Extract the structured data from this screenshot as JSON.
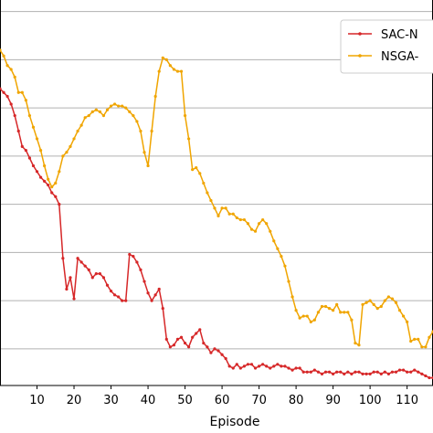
{
  "chart_data": {
    "type": "line",
    "title": "",
    "xlabel": "Episode",
    "ylabel": "",
    "xlim": [
      0,
      117
    ],
    "ylim": [
      0,
      1
    ],
    "x_ticks": [
      10,
      20,
      30,
      40,
      50,
      60,
      70,
      80,
      90,
      100,
      110
    ],
    "y_gridlines": [
      0.095,
      0.22,
      0.345,
      0.47,
      0.595,
      0.72,
      0.845,
      0.97
    ],
    "grid": "horizontal",
    "legend_position": "top-right",
    "series": [
      {
        "name": "SAC-N",
        "color": "#d62728",
        "values": [
          [
            0,
            0.77
          ],
          [
            1,
            0.76
          ],
          [
            2,
            0.75
          ],
          [
            3,
            0.73
          ],
          [
            4,
            0.7
          ],
          [
            5,
            0.66
          ],
          [
            6,
            0.62
          ],
          [
            7,
            0.61
          ],
          [
            8,
            0.59
          ],
          [
            9,
            0.57
          ],
          [
            10,
            0.555
          ],
          [
            11,
            0.54
          ],
          [
            12,
            0.53
          ],
          [
            13,
            0.52
          ],
          [
            14,
            0.5
          ],
          [
            15,
            0.49
          ],
          [
            16,
            0.47
          ],
          [
            17,
            0.33
          ],
          [
            18,
            0.25
          ],
          [
            19,
            0.28
          ],
          [
            20,
            0.225
          ],
          [
            21,
            0.33
          ],
          [
            22,
            0.32
          ],
          [
            23,
            0.31
          ],
          [
            24,
            0.3
          ],
          [
            25,
            0.28
          ],
          [
            26,
            0.29
          ],
          [
            27,
            0.29
          ],
          [
            28,
            0.28
          ],
          [
            29,
            0.26
          ],
          [
            30,
            0.245
          ],
          [
            31,
            0.235
          ],
          [
            32,
            0.23
          ],
          [
            33,
            0.22
          ],
          [
            34,
            0.22
          ],
          [
            35,
            0.34
          ],
          [
            36,
            0.335
          ],
          [
            37,
            0.32
          ],
          [
            38,
            0.3
          ],
          [
            39,
            0.27
          ],
          [
            40,
            0.24
          ],
          [
            41,
            0.22
          ],
          [
            42,
            0.235
          ],
          [
            43,
            0.25
          ],
          [
            44,
            0.2
          ],
          [
            45,
            0.12
          ],
          [
            46,
            0.1
          ],
          [
            47,
            0.105
          ],
          [
            48,
            0.12
          ],
          [
            49,
            0.125
          ],
          [
            50,
            0.11
          ],
          [
            51,
            0.1
          ],
          [
            52,
            0.125
          ],
          [
            53,
            0.135
          ],
          [
            54,
            0.145
          ],
          [
            55,
            0.11
          ],
          [
            56,
            0.1
          ],
          [
            57,
            0.085
          ],
          [
            58,
            0.095
          ],
          [
            59,
            0.09
          ],
          [
            60,
            0.08
          ],
          [
            61,
            0.07
          ],
          [
            62,
            0.05
          ],
          [
            63,
            0.045
          ],
          [
            64,
            0.055
          ],
          [
            65,
            0.045
          ],
          [
            66,
            0.05
          ],
          [
            67,
            0.055
          ],
          [
            68,
            0.055
          ],
          [
            69,
            0.045
          ],
          [
            70,
            0.05
          ],
          [
            71,
            0.055
          ],
          [
            72,
            0.05
          ],
          [
            73,
            0.045
          ],
          [
            74,
            0.05
          ],
          [
            75,
            0.055
          ],
          [
            76,
            0.05
          ],
          [
            77,
            0.05
          ],
          [
            78,
            0.045
          ],
          [
            79,
            0.04
          ],
          [
            80,
            0.045
          ],
          [
            81,
            0.045
          ],
          [
            82,
            0.035
          ],
          [
            83,
            0.035
          ],
          [
            84,
            0.035
          ],
          [
            85,
            0.04
          ],
          [
            86,
            0.035
          ],
          [
            87,
            0.03
          ],
          [
            88,
            0.035
          ],
          [
            89,
            0.035
          ],
          [
            90,
            0.03
          ],
          [
            91,
            0.035
          ],
          [
            92,
            0.035
          ],
          [
            93,
            0.03
          ],
          [
            94,
            0.035
          ],
          [
            95,
            0.03
          ],
          [
            96,
            0.035
          ],
          [
            97,
            0.035
          ],
          [
            98,
            0.03
          ],
          [
            99,
            0.03
          ],
          [
            100,
            0.03
          ],
          [
            101,
            0.035
          ],
          [
            102,
            0.035
          ],
          [
            103,
            0.03
          ],
          [
            104,
            0.035
          ],
          [
            105,
            0.03
          ],
          [
            106,
            0.035
          ],
          [
            107,
            0.035
          ],
          [
            108,
            0.04
          ],
          [
            109,
            0.04
          ],
          [
            110,
            0.035
          ],
          [
            111,
            0.035
          ],
          [
            112,
            0.04
          ],
          [
            113,
            0.035
          ],
          [
            114,
            0.03
          ],
          [
            115,
            0.025
          ],
          [
            116,
            0.02
          ],
          [
            117,
            0.02
          ]
        ]
      },
      {
        "name": "NSGA-",
        "color": "#f0a500",
        "values": [
          [
            0,
            0.87
          ],
          [
            1,
            0.855
          ],
          [
            2,
            0.83
          ],
          [
            3,
            0.82
          ],
          [
            4,
            0.8
          ],
          [
            5,
            0.76
          ],
          [
            6,
            0.76
          ],
          [
            7,
            0.74
          ],
          [
            8,
            0.7
          ],
          [
            9,
            0.67
          ],
          [
            10,
            0.64
          ],
          [
            11,
            0.61
          ],
          [
            12,
            0.57
          ],
          [
            13,
            0.535
          ],
          [
            14,
            0.515
          ],
          [
            15,
            0.525
          ],
          [
            16,
            0.555
          ],
          [
            17,
            0.595
          ],
          [
            18,
            0.605
          ],
          [
            19,
            0.62
          ],
          [
            20,
            0.64
          ],
          [
            21,
            0.66
          ],
          [
            22,
            0.675
          ],
          [
            23,
            0.695
          ],
          [
            24,
            0.7
          ],
          [
            25,
            0.71
          ],
          [
            26,
            0.715
          ],
          [
            27,
            0.71
          ],
          [
            28,
            0.7
          ],
          [
            29,
            0.715
          ],
          [
            30,
            0.725
          ],
          [
            31,
            0.73
          ],
          [
            32,
            0.725
          ],
          [
            33,
            0.725
          ],
          [
            34,
            0.72
          ],
          [
            35,
            0.71
          ],
          [
            36,
            0.7
          ],
          [
            37,
            0.685
          ],
          [
            38,
            0.66
          ],
          [
            39,
            0.605
          ],
          [
            40,
            0.57
          ],
          [
            41,
            0.66
          ],
          [
            42,
            0.75
          ],
          [
            43,
            0.815
          ],
          [
            44,
            0.85
          ],
          [
            45,
            0.845
          ],
          [
            46,
            0.83
          ],
          [
            47,
            0.82
          ],
          [
            48,
            0.815
          ],
          [
            49,
            0.815
          ],
          [
            50,
            0.7
          ],
          [
            51,
            0.64
          ],
          [
            52,
            0.56
          ],
          [
            53,
            0.565
          ],
          [
            54,
            0.55
          ],
          [
            55,
            0.525
          ],
          [
            56,
            0.5
          ],
          [
            57,
            0.48
          ],
          [
            58,
            0.46
          ],
          [
            59,
            0.44
          ],
          [
            60,
            0.46
          ],
          [
            61,
            0.46
          ],
          [
            62,
            0.445
          ],
          [
            63,
            0.445
          ],
          [
            64,
            0.435
          ],
          [
            65,
            0.43
          ],
          [
            66,
            0.43
          ],
          [
            67,
            0.42
          ],
          [
            68,
            0.405
          ],
          [
            69,
            0.4
          ],
          [
            70,
            0.42
          ],
          [
            71,
            0.43
          ],
          [
            72,
            0.42
          ],
          [
            73,
            0.4
          ],
          [
            74,
            0.375
          ],
          [
            75,
            0.355
          ],
          [
            76,
            0.335
          ],
          [
            77,
            0.31
          ],
          [
            78,
            0.27
          ],
          [
            79,
            0.23
          ],
          [
            80,
            0.195
          ],
          [
            81,
            0.175
          ],
          [
            82,
            0.18
          ],
          [
            83,
            0.18
          ],
          [
            84,
            0.165
          ],
          [
            85,
            0.17
          ],
          [
            86,
            0.19
          ],
          [
            87,
            0.205
          ],
          [
            88,
            0.205
          ],
          [
            89,
            0.2
          ],
          [
            90,
            0.195
          ],
          [
            91,
            0.21
          ],
          [
            92,
            0.19
          ],
          [
            93,
            0.19
          ],
          [
            94,
            0.19
          ],
          [
            95,
            0.17
          ],
          [
            96,
            0.11
          ],
          [
            97,
            0.105
          ],
          [
            98,
            0.21
          ],
          [
            99,
            0.215
          ],
          [
            100,
            0.22
          ],
          [
            101,
            0.21
          ],
          [
            102,
            0.2
          ],
          [
            103,
            0.205
          ],
          [
            104,
            0.22
          ],
          [
            105,
            0.23
          ],
          [
            106,
            0.225
          ],
          [
            107,
            0.215
          ],
          [
            108,
            0.195
          ],
          [
            109,
            0.18
          ],
          [
            110,
            0.165
          ],
          [
            111,
            0.115
          ],
          [
            112,
            0.12
          ],
          [
            113,
            0.12
          ],
          [
            114,
            0.1
          ],
          [
            115,
            0.1
          ],
          [
            116,
            0.125
          ],
          [
            117,
            0.14
          ]
        ]
      }
    ]
  }
}
